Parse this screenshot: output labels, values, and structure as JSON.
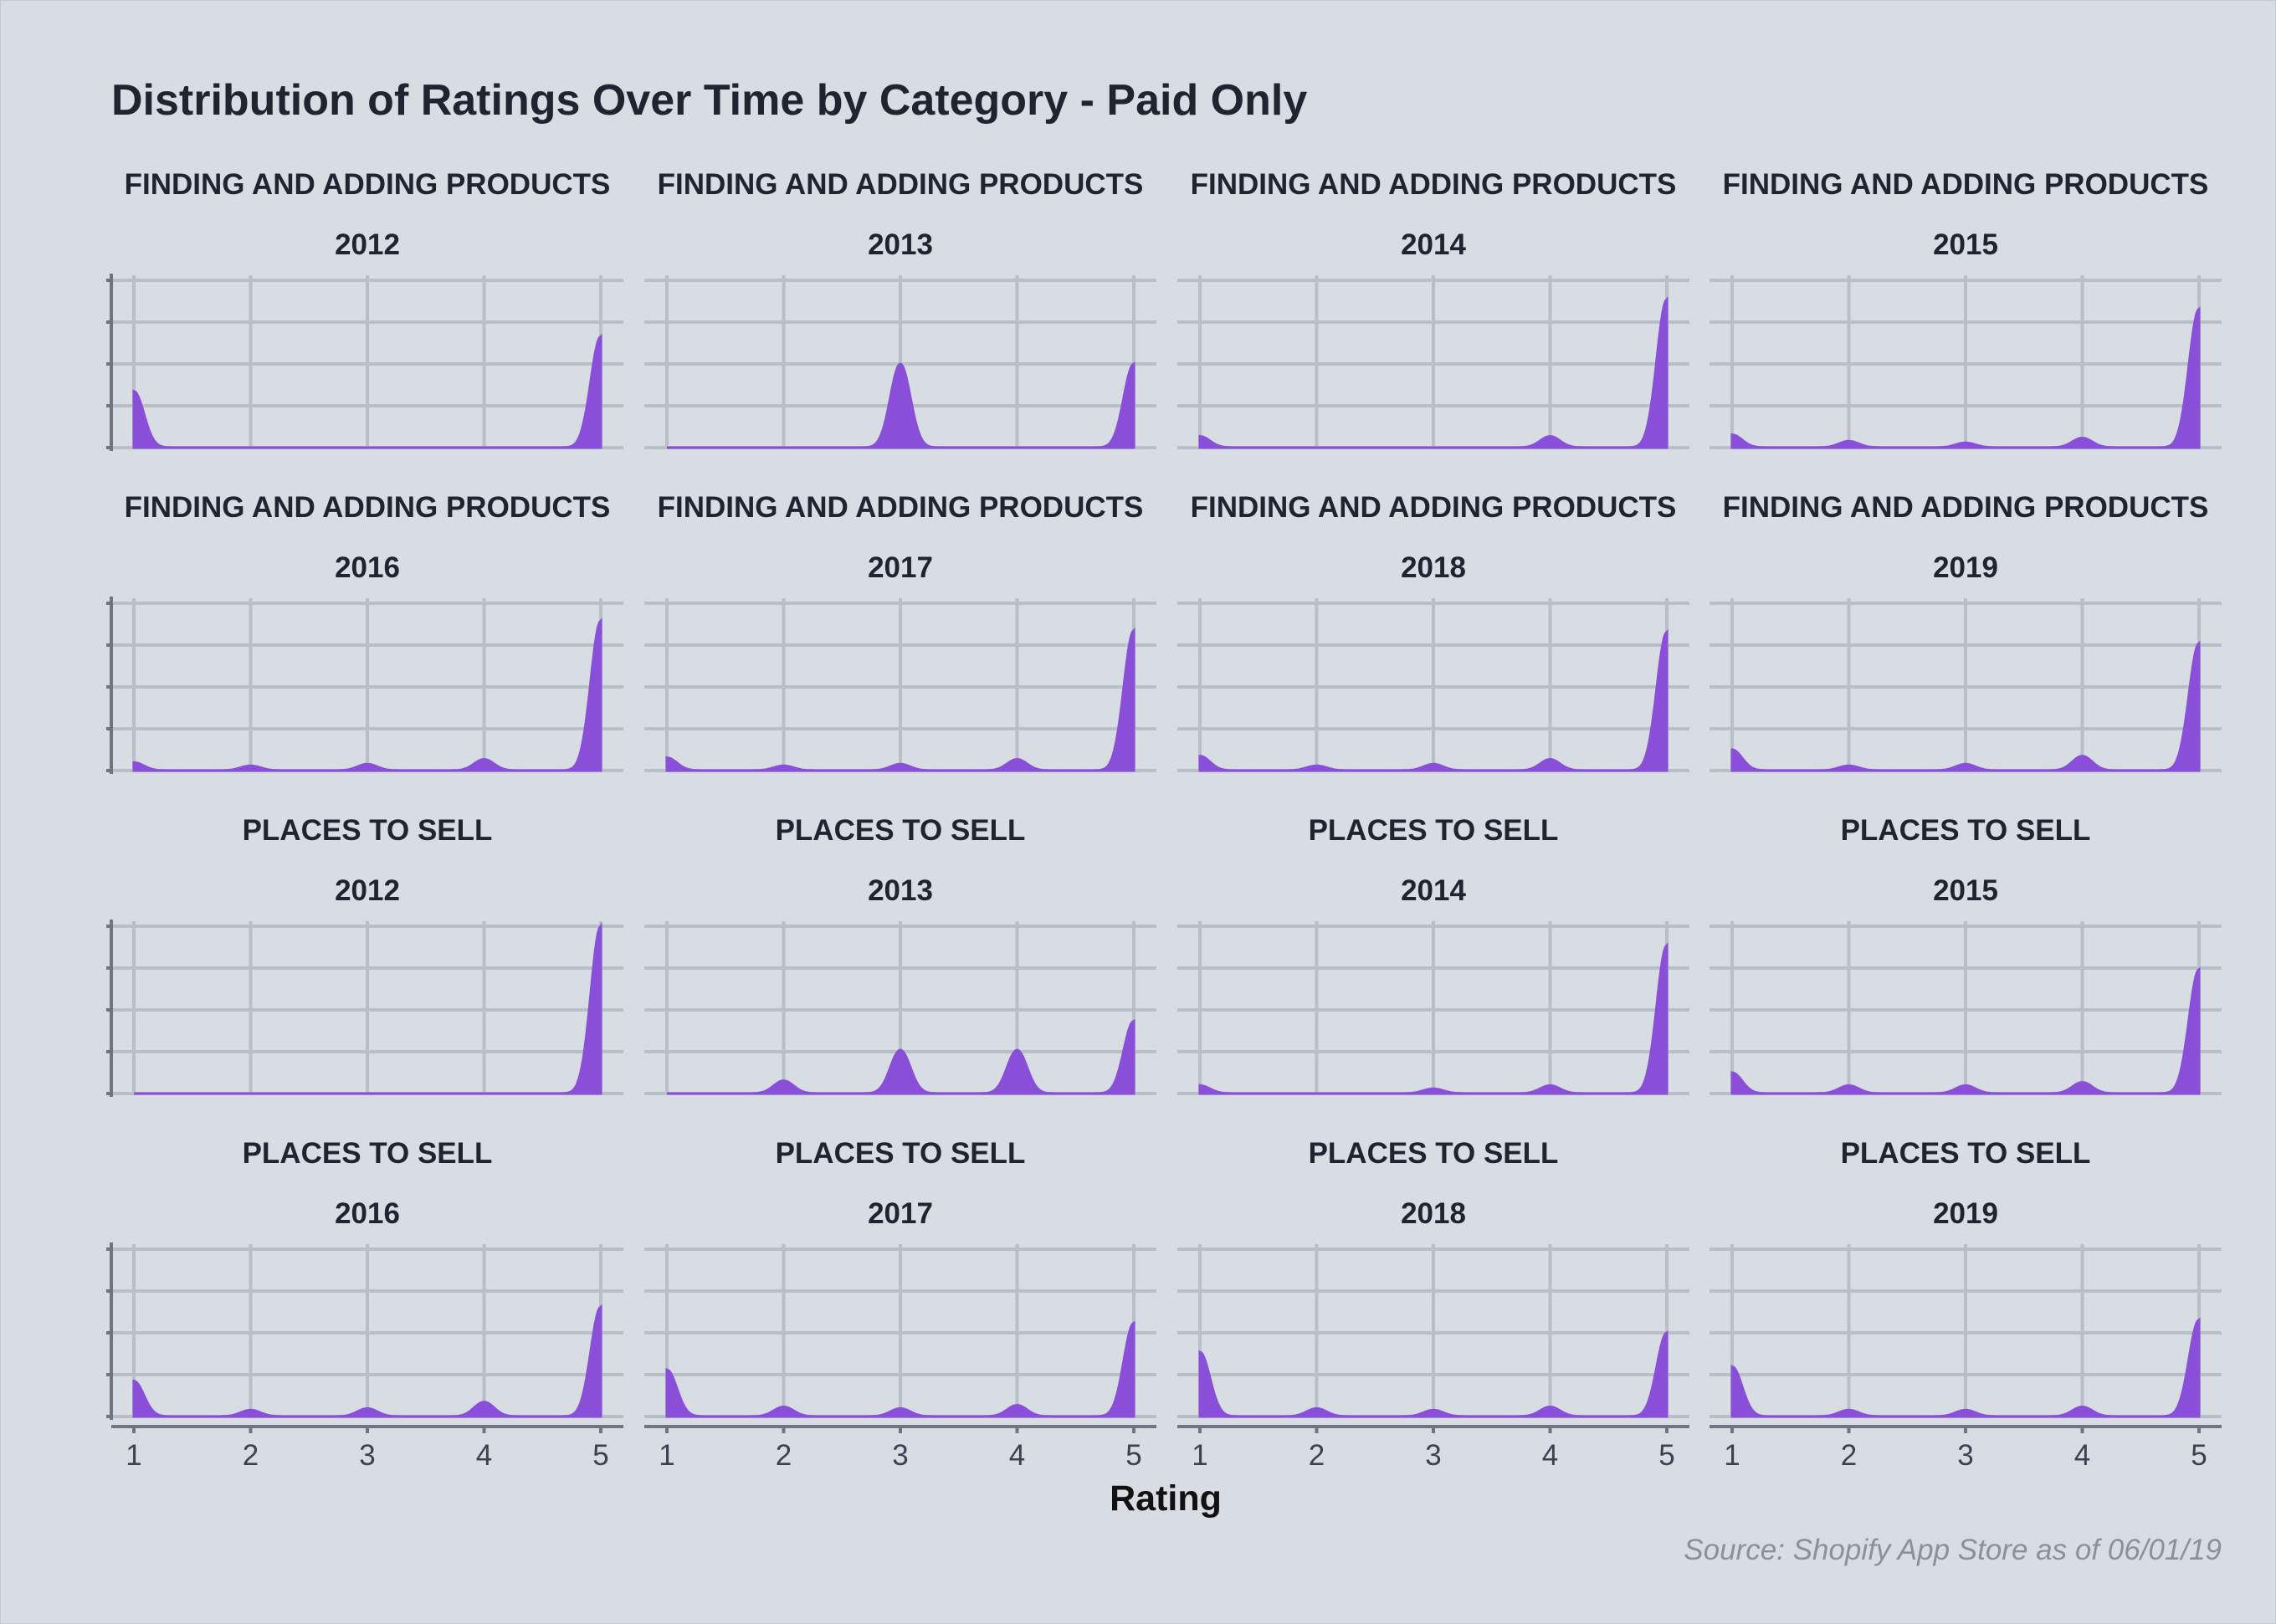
{
  "chart_data": {
    "type": "area",
    "title": "Distribution of Ratings Over Time by Category - Paid Only",
    "xlabel": "Rating",
    "caption": "Source: Shopify App Store as of 06/01/19",
    "x_ticks": [
      1,
      2,
      3,
      4,
      5
    ],
    "xlim": [
      1,
      5
    ],
    "grid": true,
    "fill_color": "#8a4fd8",
    "background_color": "#d8dde4",
    "grid_color": "#b9bfc9",
    "panels": [
      {
        "category": "FINDING AND ADDING PRODUCTS",
        "year": "2012",
        "values": [
          0.35,
          0.0,
          0.0,
          0.0,
          0.69
        ]
      },
      {
        "category": "FINDING AND ADDING PRODUCTS",
        "year": "2013",
        "values": [
          0.0,
          0.0,
          0.52,
          0.0,
          0.52
        ]
      },
      {
        "category": "FINDING AND ADDING PRODUCTS",
        "year": "2014",
        "values": [
          0.07,
          0.0,
          0.0,
          0.07,
          0.92
        ]
      },
      {
        "category": "FINDING AND ADDING PRODUCTS",
        "year": "2015",
        "values": [
          0.08,
          0.04,
          0.03,
          0.06,
          0.86
        ]
      },
      {
        "category": "FINDING AND ADDING PRODUCTS",
        "year": "2016",
        "values": [
          0.05,
          0.03,
          0.04,
          0.07,
          0.93
        ]
      },
      {
        "category": "FINDING AND ADDING PRODUCTS",
        "year": "2017",
        "values": [
          0.08,
          0.03,
          0.04,
          0.07,
          0.87
        ]
      },
      {
        "category": "FINDING AND ADDING PRODUCTS",
        "year": "2018",
        "values": [
          0.09,
          0.03,
          0.04,
          0.07,
          0.86
        ]
      },
      {
        "category": "FINDING AND ADDING PRODUCTS",
        "year": "2019",
        "values": [
          0.13,
          0.03,
          0.04,
          0.09,
          0.79
        ]
      },
      {
        "category": "PLACES TO SELL",
        "year": "2012",
        "values": [
          0.0,
          0.0,
          0.0,
          0.0,
          1.04
        ]
      },
      {
        "category": "PLACES TO SELL",
        "year": "2013",
        "values": [
          0.0,
          0.08,
          0.27,
          0.27,
          0.45
        ]
      },
      {
        "category": "PLACES TO SELL",
        "year": "2014",
        "values": [
          0.05,
          0.0,
          0.03,
          0.05,
          0.92
        ]
      },
      {
        "category": "PLACES TO SELL",
        "year": "2015",
        "values": [
          0.13,
          0.05,
          0.05,
          0.07,
          0.77
        ]
      },
      {
        "category": "PLACES TO SELL",
        "year": "2016",
        "values": [
          0.22,
          0.04,
          0.05,
          0.09,
          0.68
        ]
      },
      {
        "category": "PLACES TO SELL",
        "year": "2017",
        "values": [
          0.29,
          0.06,
          0.05,
          0.07,
          0.58
        ]
      },
      {
        "category": "PLACES TO SELL",
        "year": "2018",
        "values": [
          0.4,
          0.05,
          0.04,
          0.06,
          0.52
        ]
      },
      {
        "category": "PLACES TO SELL",
        "year": "2019",
        "values": [
          0.31,
          0.04,
          0.04,
          0.06,
          0.6
        ]
      }
    ]
  }
}
